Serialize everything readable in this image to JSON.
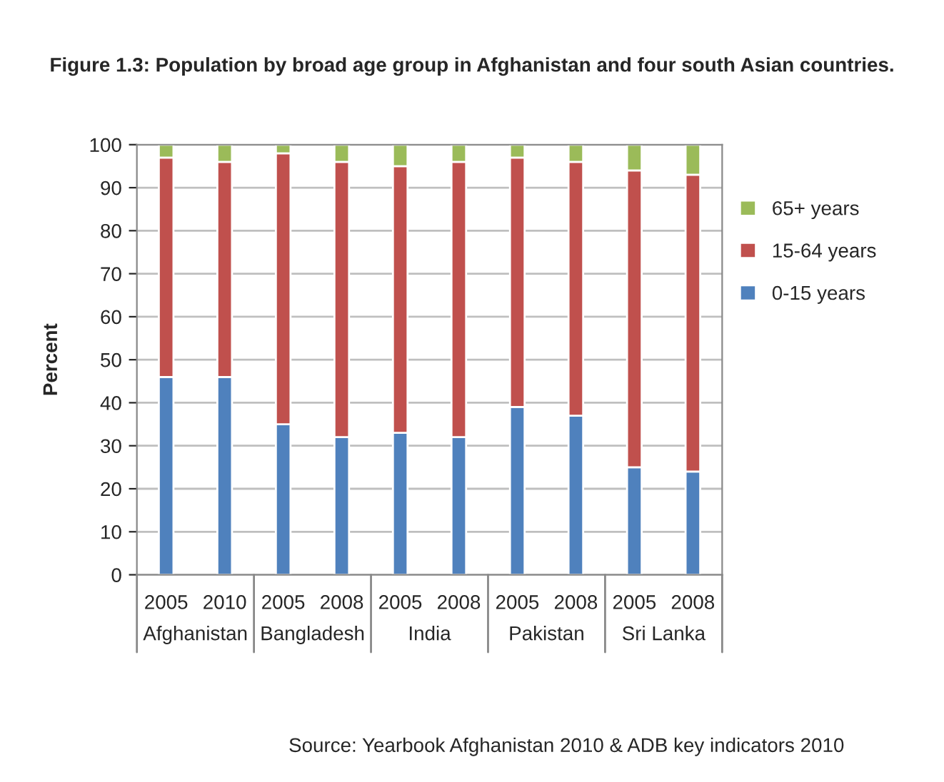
{
  "chart_data": {
    "type": "bar",
    "stacked": true,
    "title": "Figure 1.3: Population by broad age group in Afghanistan and four south Asian countries.",
    "ylabel": "Percent",
    "categories": [
      "2005",
      "2010",
      "2005",
      "2008",
      "2005",
      "2008",
      "2005",
      "2008",
      "2005",
      "2008"
    ],
    "series": [
      {
        "name": "0-15 years",
        "color": "#4f81bd",
        "values": [
          46,
          46,
          35,
          32,
          33,
          32,
          39,
          37,
          25,
          24
        ]
      },
      {
        "name": "15-64 years",
        "color": "#c0504d",
        "values": [
          51,
          50,
          63,
          64,
          62,
          64,
          58,
          59,
          69,
          69
        ]
      },
      {
        "name": "65+ years",
        "color": "#9bbb59",
        "values": [
          3,
          4,
          2,
          4,
          5,
          4,
          3,
          4,
          6,
          7
        ]
      }
    ],
    "ylim": [
      0,
      100
    ],
    "yticks": [
      0,
      10,
      20,
      30,
      40,
      50,
      60,
      70,
      80,
      90,
      100
    ],
    "grid": "y",
    "legend": "right",
    "annotations": [
      "Afghanistan",
      "Bangladesh",
      "India",
      "Pakistan",
      "Sri Lanka",
      "Source: Yearbook Afghanistan 2010 & ADB key indicators 2010"
    ]
  }
}
